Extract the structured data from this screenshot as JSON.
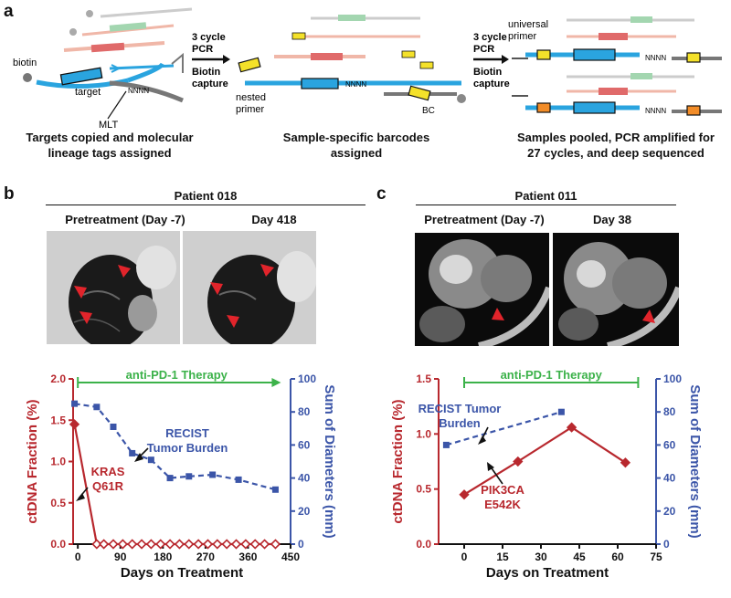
{
  "panel_a": {
    "label": "a",
    "step1": {
      "labels": {
        "biotin": "biotin",
        "target": "target",
        "mlt": "MLT",
        "nnnn": "NNNN"
      },
      "caption_l1": "Targets copied and molecular",
      "caption_l2": "lineage tags assigned"
    },
    "arrow1": {
      "l1": "3 cycle",
      "l2": "PCR",
      "l3": "Biotin",
      "l4": "capture"
    },
    "step2": {
      "labels": {
        "nested": "nested",
        "primer": "primer",
        "bc": "BC",
        "nnnn": "NNNN"
      },
      "caption_l1": "Sample-specific barcodes",
      "caption_l2": "assigned"
    },
    "arrow2": {
      "l1": "3 cycle",
      "l2": "PCR",
      "l3": "Biotin",
      "l4": "capture"
    },
    "step3": {
      "labels": {
        "universal": "universal",
        "primer": "primer",
        "nnnn": "NNNN"
      },
      "caption_l1": "Samples pooled, PCR amplified for",
      "caption_l2": "27 cycles, and deep sequenced"
    },
    "colors": {
      "dna": "#2aa4df",
      "red": "#e06a6a",
      "pink": "#f0b7a8",
      "green": "#a3d6b0",
      "yellow": "#f4e12a",
      "orange": "#f28c28",
      "gray": "#777777"
    }
  },
  "panel_b": {
    "label": "b",
    "patient": "Patient 018",
    "scan1_label": "Pretreatment (Day -7)",
    "scan2_label": "Day 418",
    "therapy": "anti-PD-1 Therapy",
    "recist_l1": "RECIST",
    "recist_l2": "Tumor Burden",
    "mut_l1": "KRAS",
    "mut_l2": "Q61R"
  },
  "panel_c": {
    "label": "c",
    "patient": "Patient 011",
    "scan1_label": "Pretreatment (Day -7)",
    "scan2_label": "Day 38",
    "therapy": "anti-PD-1 Therapy",
    "recist_l1": "RECIST Tumor",
    "recist_l2": "Burden",
    "mut_l1": "PIK3CA",
    "mut_l2": "E542K"
  },
  "colors": {
    "ctdna": "#b8282e",
    "recist": "#3b55a8",
    "therapy": "#3cb24a"
  },
  "chart_data": [
    {
      "type": "line",
      "panel": "b",
      "xlabel": "Days on Treatment",
      "ylabel_left": "ctDNA Fraction (%)",
      "ylabel_right": "Sum of Diameters (mm)",
      "xlim": [
        -10,
        450
      ],
      "xticks": [
        0,
        90,
        180,
        270,
        360,
        450
      ],
      "ylim_left": [
        0,
        2.0
      ],
      "yticks_left": [
        "0.0",
        "0.5",
        "1.0",
        "1.5",
        "2.0"
      ],
      "ylim_right": [
        0,
        100
      ],
      "yticks_right": [
        "0",
        "20",
        "40",
        "60",
        "80",
        "100"
      ],
      "therapy_range": [
        0,
        418
      ],
      "series": [
        {
          "axis": "left",
          "marker": "diamond-solid-first",
          "x": [
            -7,
            40,
            55,
            75,
            95,
            115,
            135,
            155,
            175,
            195,
            215,
            235,
            255,
            275,
            295,
            315,
            335,
            355,
            375,
            395,
            418
          ],
          "y": [
            1.45,
            0,
            0,
            0,
            0,
            0,
            0,
            0,
            0,
            0,
            0,
            0,
            0,
            0,
            0,
            0,
            0,
            0,
            0,
            0,
            0
          ]
        },
        {
          "axis": "right",
          "marker": "square",
          "dash": true,
          "x": [
            -7,
            40,
            75,
            115,
            155,
            195,
            235,
            285,
            340,
            418
          ],
          "y": [
            85,
            83,
            71,
            55,
            51,
            40,
            41,
            42,
            39,
            33
          ]
        }
      ]
    },
    {
      "type": "line",
      "panel": "c",
      "xlabel": "Days on Treatment",
      "ylabel_left": "ctDNA Fraction (%)",
      "ylabel_right": "Sum of Diameters (mm)",
      "xlim": [
        -10,
        75
      ],
      "xticks": [
        0,
        15,
        30,
        45,
        60,
        75
      ],
      "ylim_left": [
        0,
        1.5
      ],
      "yticks_left": [
        "0.0",
        "0.5",
        "1.0",
        "1.5"
      ],
      "ylim_right": [
        0,
        100
      ],
      "yticks_right": [
        "0",
        "20",
        "40",
        "60",
        "80",
        "100"
      ],
      "therapy_range": [
        0,
        68
      ],
      "series": [
        {
          "axis": "left",
          "marker": "diamond",
          "x": [
            0,
            21,
            42,
            63
          ],
          "y": [
            0.45,
            0.75,
            1.06,
            0.74
          ]
        },
        {
          "axis": "right",
          "marker": "square",
          "dash": true,
          "x": [
            -7,
            38
          ],
          "y": [
            60,
            80
          ]
        }
      ]
    }
  ]
}
